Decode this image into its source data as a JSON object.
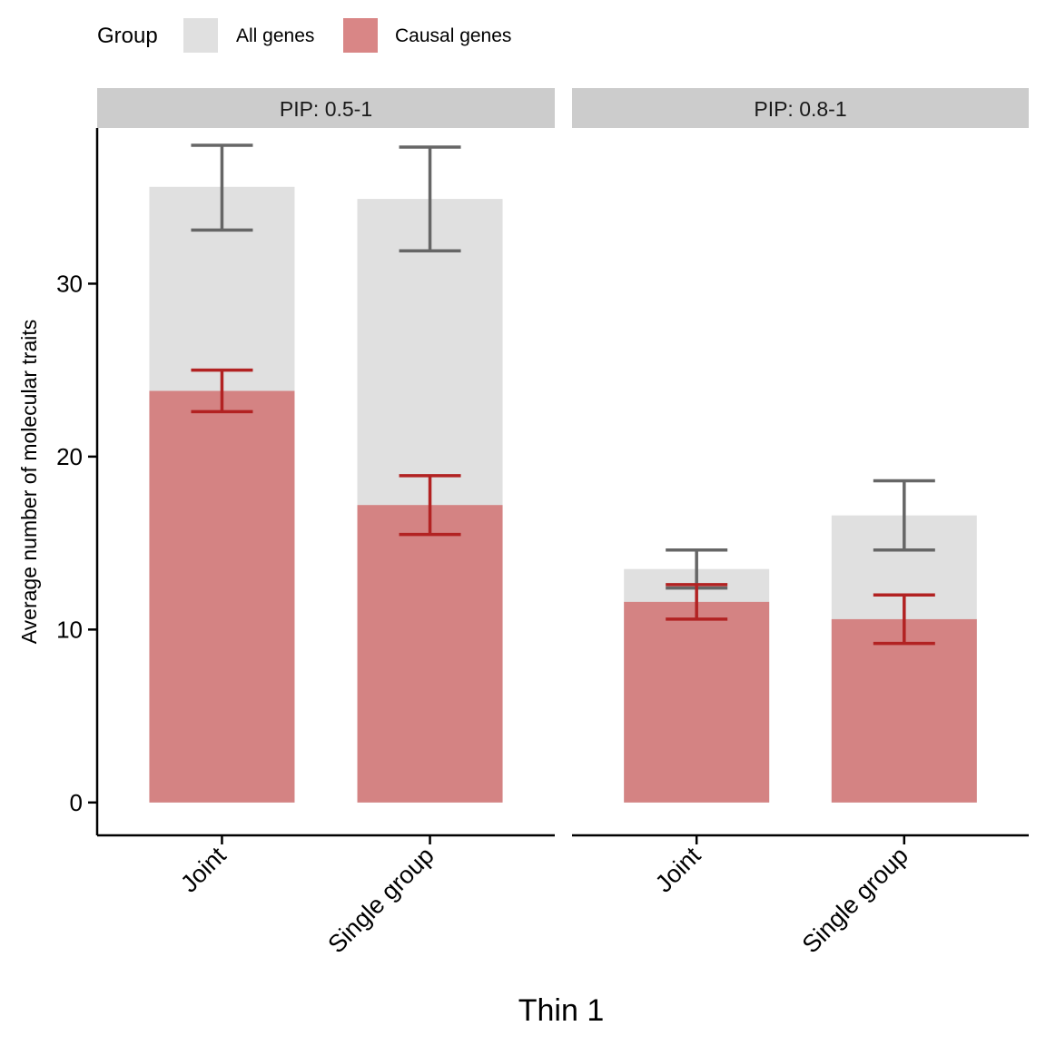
{
  "legend": {
    "title": "Group",
    "items": [
      {
        "label": "All genes",
        "color": "#e0e0e0"
      },
      {
        "label": "Causal genes",
        "color": "#d98686"
      }
    ]
  },
  "chart_data": {
    "type": "bar",
    "stacking": "overlay",
    "xlabel": "Thin 1",
    "ylabel": "Average number of molecular traits",
    "ylim": [
      -1.9,
      39
    ],
    "yticks": [
      0,
      10,
      20,
      30
    ],
    "categories": [
      "Joint",
      "Single group"
    ],
    "facets": [
      {
        "label": "PIP: 0.5-1",
        "series": [
          {
            "name": "All genes",
            "color": "#e0e0e0",
            "error_color": "#666666",
            "values": [
              35.6,
              34.9
            ],
            "err_low": [
              33.1,
              31.9
            ],
            "err_high": [
              38.0,
              37.9
            ]
          },
          {
            "name": "Causal genes",
            "color": "#d48383",
            "error_color": "#b22222",
            "values": [
              23.8,
              17.2
            ],
            "err_low": [
              22.6,
              15.5
            ],
            "err_high": [
              25.0,
              18.9
            ]
          }
        ]
      },
      {
        "label": "PIP: 0.8-1",
        "series": [
          {
            "name": "All genes",
            "color": "#e0e0e0",
            "error_color": "#666666",
            "values": [
              13.5,
              16.6
            ],
            "err_low": [
              12.4,
              14.6
            ],
            "err_high": [
              14.6,
              18.6
            ]
          },
          {
            "name": "Causal genes",
            "color": "#d48383",
            "error_color": "#b22222",
            "values": [
              11.6,
              10.6
            ],
            "err_low": [
              10.6,
              9.2
            ],
            "err_high": [
              12.6,
              12.0
            ]
          }
        ]
      }
    ]
  }
}
